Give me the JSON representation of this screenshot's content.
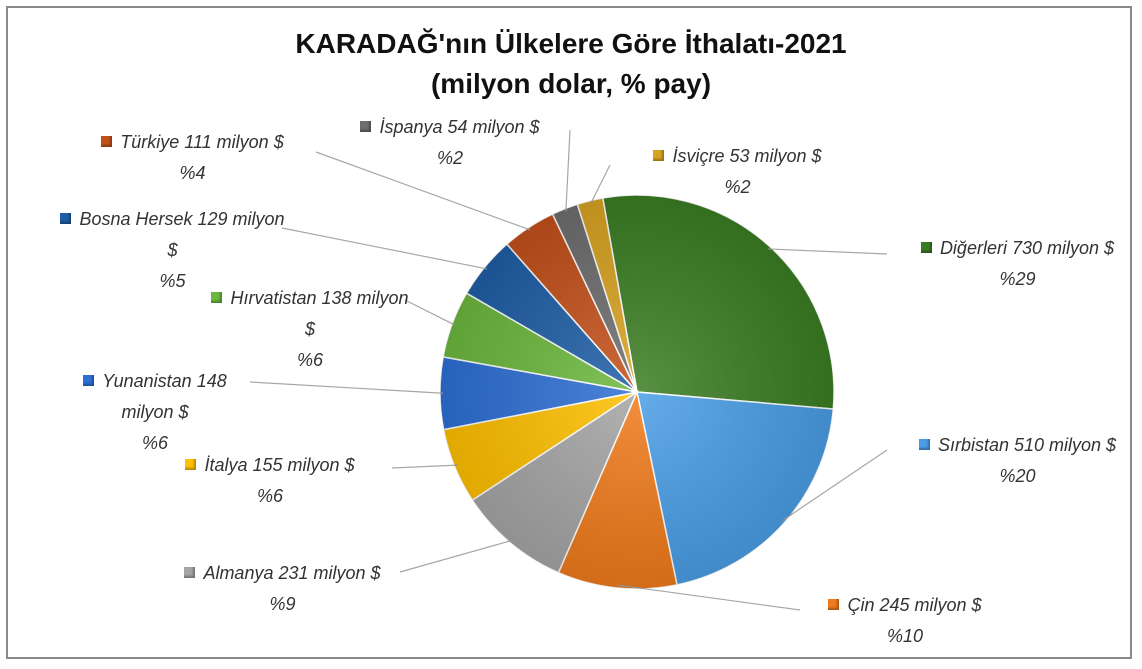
{
  "chart_data": {
    "type": "pie",
    "title": "KARADAĞ'nın Ülkelere Göre İthalatı-2021",
    "subtitle": "(milyon dolar, % pay)",
    "categories": [
      "Diğerleri",
      "Sırbistan",
      "Çin",
      "Almanya",
      "İtalya",
      "Yunanistan",
      "Hırvatistan",
      "Bosna Hersek",
      "Türkiye",
      "İspanya",
      "İsviçre"
    ],
    "values": [
      730,
      510,
      245,
      231,
      155,
      148,
      138,
      129,
      111,
      54,
      53
    ],
    "value_labels": [
      "730 milyon $",
      "510 milyon $",
      "245 milyon $",
      "231 milyon $",
      "155 milyon $",
      "148 milyon $",
      "138 milyon $",
      "129 milyon $",
      "111 milyon $",
      "54 milyon $",
      "53 milyon $"
    ],
    "percent_labels": [
      "%29",
      "%20",
      "%10",
      "%9",
      "%6",
      "%6",
      "%6",
      "%5",
      "%4",
      "%2",
      "%2"
    ],
    "colors": [
      "#3b7d23",
      "#4a9ee6",
      "#f07b1c",
      "#a5a5a5",
      "#ffc000",
      "#2e6fd4",
      "#6cb83e",
      "#1f5ea6",
      "#c4501b",
      "#6e6e6e",
      "#d8a322"
    ]
  }
}
